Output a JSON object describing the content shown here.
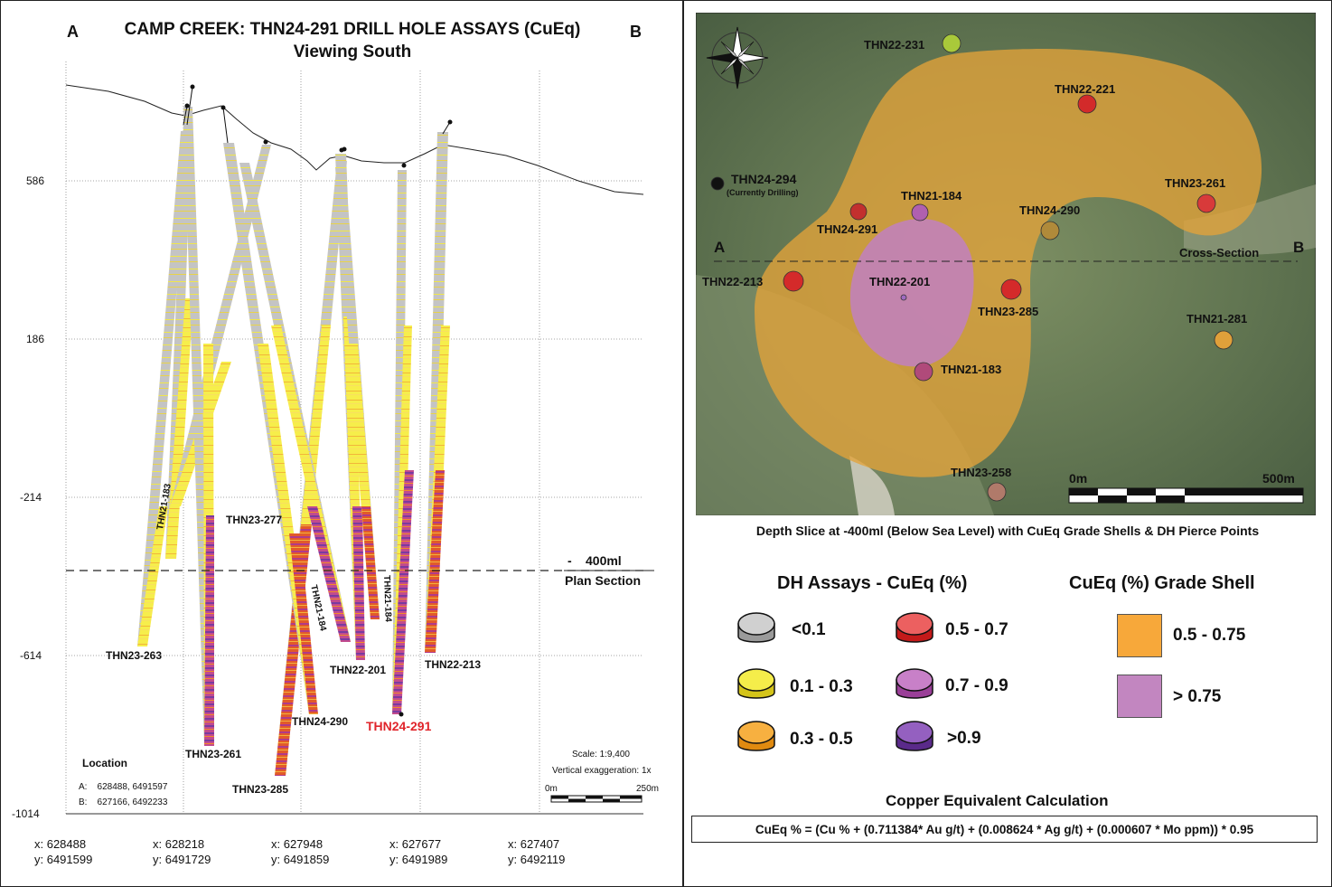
{
  "cross_section": {
    "title": "CAMP CREEK: THN24-291 DRILL HOLE ASSAYS (CuEq)",
    "subtitle": "Viewing South",
    "label_a": "A",
    "label_b": "B",
    "elevation_ticks": [
      "586",
      "186",
      "-214",
      "-614",
      "-1014"
    ],
    "plan_section_level": "400ml",
    "plan_section_dash": "-",
    "plan_section_text": "Plan Section",
    "easting_ticks": [
      {
        "x": "x: 628488",
        "y": "y: 6491599"
      },
      {
        "x": "x: 628218",
        "y": "y: 6491729"
      },
      {
        "x": "x: 627948",
        "y": "y: 6491859"
      },
      {
        "x": "x: 627677",
        "y": "y: 6491989"
      },
      {
        "x": "x: 627407",
        "y": "y: 6492119"
      }
    ],
    "hole_labels": [
      "THN23-263",
      "THN21-183",
      "THN23-277",
      "THN23-261",
      "THN23-285",
      "THN24-290",
      "THN21-184",
      "THN22-201",
      "THN21-184",
      "THN24-291",
      "THN22-213"
    ],
    "location_title": "Location",
    "location_a": "A:    628488, 6491597",
    "location_b": "B:    627166, 6492233",
    "scale": "Scale: 1:9,400",
    "vertical_exaggeration": "Vertical exaggeration: 1x",
    "scalebar_start": "0m",
    "scalebar_end": "250m"
  },
  "plan_map": {
    "label_a": "A",
    "label_b": "B",
    "cross_section_label": "Cross-Section",
    "drilling_hole": "THN24-294",
    "drilling_note": "(Currently Drilling)",
    "hole_labels": [
      "THN22-231",
      "THN22-221",
      "THN21-184",
      "THN24-291",
      "THN24-290",
      "THN23-261",
      "THN22-213",
      "THN22-201",
      "THN23-285",
      "THN21-281",
      "THN21-183",
      "THN23-258"
    ],
    "scalebar_start": "0m",
    "scalebar_end": "500m",
    "caption": "Depth Slice at -400ml (Below Sea Level) with CuEq Grade Shells & DH Pierce Points"
  },
  "legend": {
    "assays_title": "DH Assays - CuEq (%)",
    "assay_classes": [
      {
        "label": "<0.1",
        "color": "#c8c8c8"
      },
      {
        "label": "0.1 - 0.3",
        "color": "#f2ea3a"
      },
      {
        "label": "0.3 - 0.5",
        "color": "#f5a623"
      },
      {
        "label": "0.5 - 0.7",
        "color": "#e0242a"
      },
      {
        "label": "0.7 - 0.9",
        "color": "#b04fa8"
      },
      {
        "label": ">0.9",
        "color": "#6a3a9a"
      }
    ],
    "shell_title": "CuEq (%) Grade Shell",
    "shell_classes": [
      {
        "label": "0.5 - 0.75",
        "color": "#f7a83a"
      },
      {
        "label": "> 0.75",
        "color": "#c286c0"
      }
    ]
  },
  "calculation": {
    "title": "Copper Equivalent Calculation",
    "formula": "CuEq % = (Cu % + (0.711384* Au g/t) + (0.008624 * Ag g/t) + (0.000607 * Mo ppm)) * 0.95"
  }
}
